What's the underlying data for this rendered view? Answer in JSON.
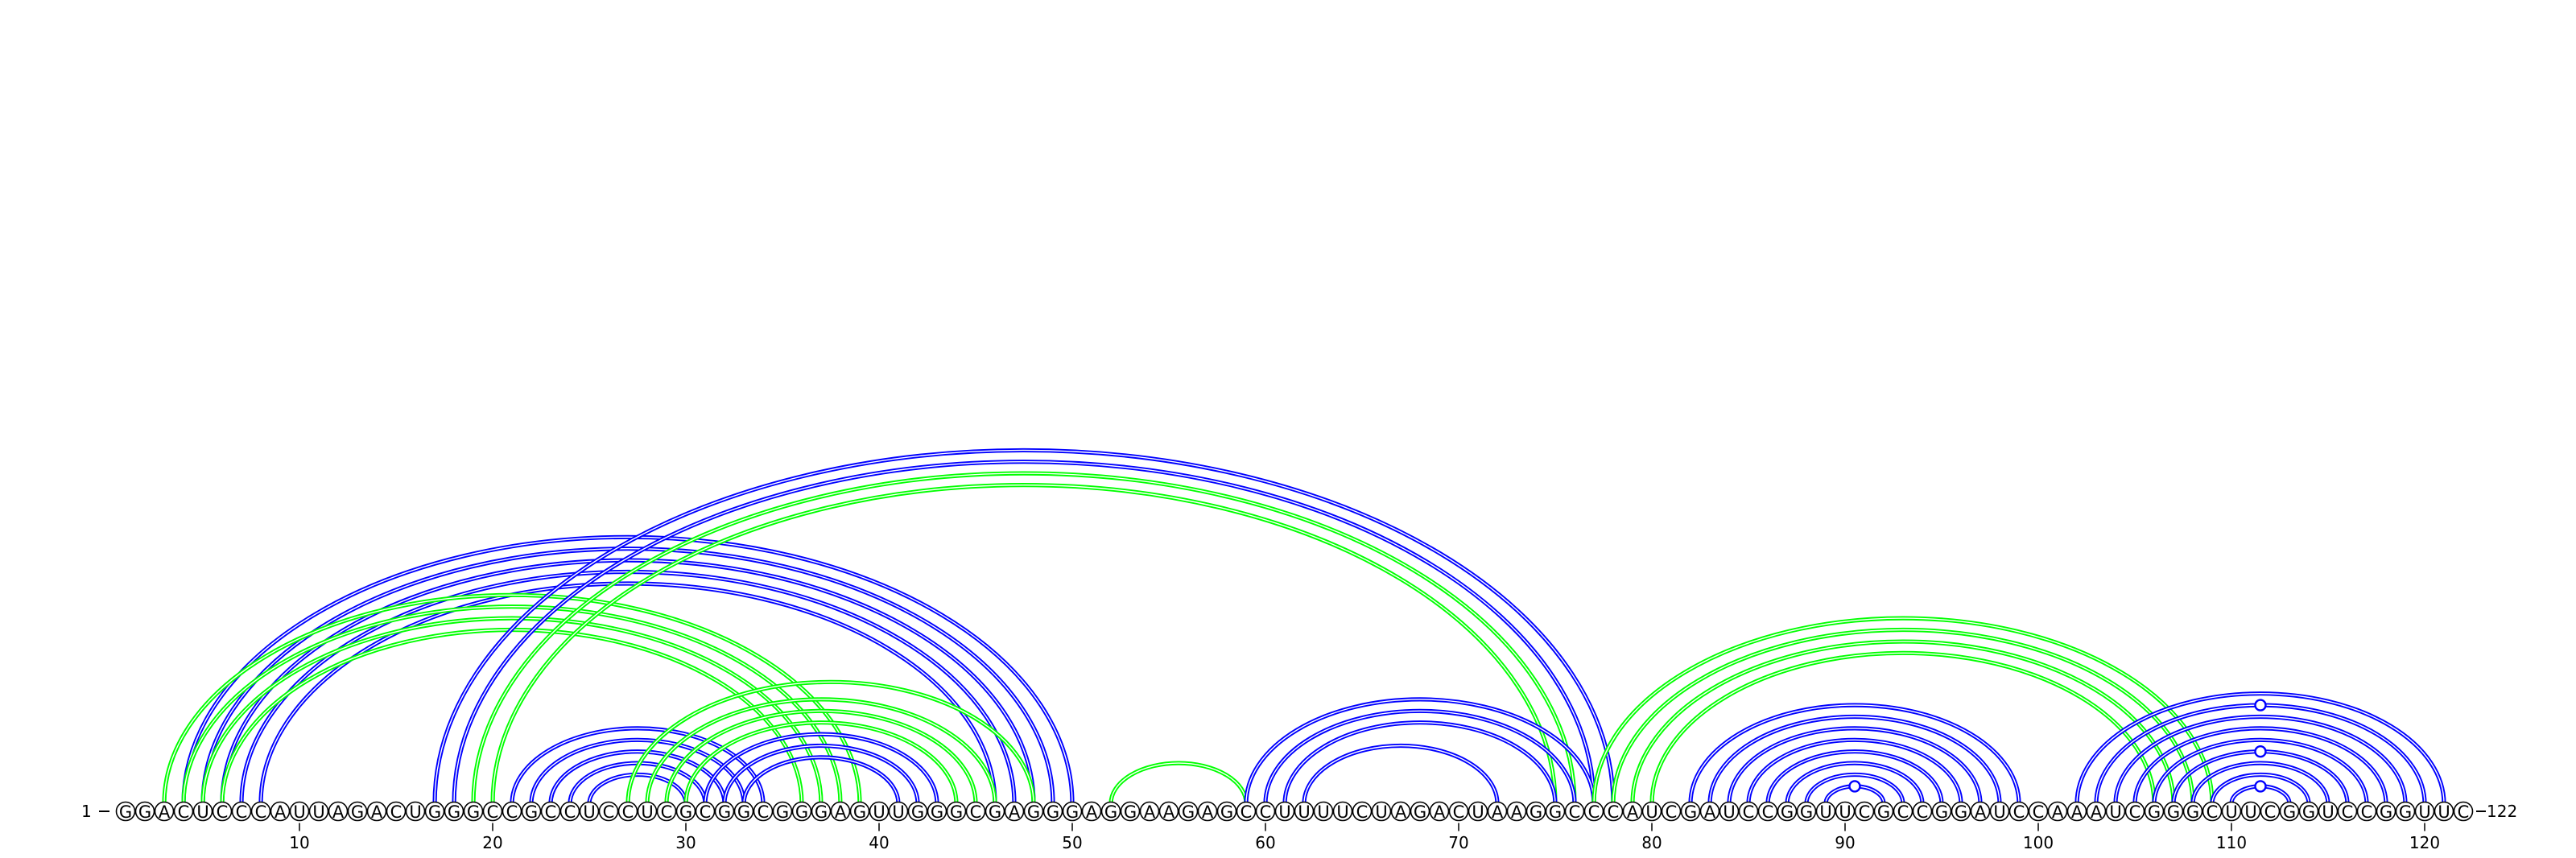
{
  "chart_data": {
    "type": "arc-diagram",
    "sequence": "GGACUCCCAUUAGACUGGGCCGCCUCCUCGCGGCGGGAGUUGGGCGAGGGAGGAAGAGCCUUUUCUAGACUAAGGCCCAUCGAUCCGGUUCGCCGGAUCCAAAUCGGGCUUCGGUCCGGUUC",
    "start_label": "1",
    "end_label": "122",
    "tick_labels": [
      "10",
      "20",
      "30",
      "40",
      "50",
      "60",
      "70",
      "80",
      "90",
      "100",
      "110",
      "120"
    ],
    "tick_positions": [
      10,
      20,
      30,
      40,
      50,
      60,
      70,
      80,
      90,
      100,
      110,
      120
    ],
    "colors": {
      "blue": "#0000ff",
      "green": "#00ff00"
    },
    "pairs": [
      {
        "i": 4,
        "j": 50,
        "color": "blue"
      },
      {
        "i": 5,
        "j": 49,
        "color": "blue"
      },
      {
        "i": 6,
        "j": 48,
        "color": "blue"
      },
      {
        "i": 7,
        "j": 47,
        "color": "blue"
      },
      {
        "i": 8,
        "j": 46,
        "color": "blue"
      },
      {
        "i": 3,
        "j": 39,
        "color": "green"
      },
      {
        "i": 4,
        "j": 38,
        "color": "green"
      },
      {
        "i": 5,
        "j": 37,
        "color": "green"
      },
      {
        "i": 6,
        "j": 36,
        "color": "green"
      },
      {
        "i": 17,
        "j": 78,
        "color": "blue"
      },
      {
        "i": 18,
        "j": 77,
        "color": "blue"
      },
      {
        "i": 19,
        "j": 76,
        "color": "green"
      },
      {
        "i": 20,
        "j": 75,
        "color": "green"
      },
      {
        "i": 21,
        "j": 34,
        "color": "blue"
      },
      {
        "i": 22,
        "j": 33,
        "color": "blue"
      },
      {
        "i": 23,
        "j": 32,
        "color": "blue"
      },
      {
        "i": 24,
        "j": 31,
        "color": "blue"
      },
      {
        "i": 25,
        "j": 30,
        "color": "blue"
      },
      {
        "i": 27,
        "j": 48,
        "color": "green"
      },
      {
        "i": 28,
        "j": 46,
        "color": "green"
      },
      {
        "i": 29,
        "j": 45,
        "color": "green"
      },
      {
        "i": 30,
        "j": 44,
        "color": "green"
      },
      {
        "i": 31,
        "j": 43,
        "color": "blue"
      },
      {
        "i": 32,
        "j": 42,
        "color": "blue"
      },
      {
        "i": 33,
        "j": 41,
        "color": "blue"
      },
      {
        "i": 52,
        "j": 59,
        "color": "green"
      },
      {
        "i": 59,
        "j": 77,
        "color": "blue"
      },
      {
        "i": 60,
        "j": 76,
        "color": "blue"
      },
      {
        "i": 61,
        "j": 75,
        "color": "blue"
      },
      {
        "i": 62,
        "j": 72,
        "color": "blue"
      },
      {
        "i": 77,
        "j": 109,
        "color": "green"
      },
      {
        "i": 78,
        "j": 108,
        "color": "green"
      },
      {
        "i": 79,
        "j": 107,
        "color": "green"
      },
      {
        "i": 80,
        "j": 106,
        "color": "green"
      },
      {
        "i": 82,
        "j": 99,
        "color": "blue"
      },
      {
        "i": 83,
        "j": 98,
        "color": "blue"
      },
      {
        "i": 84,
        "j": 97,
        "color": "blue"
      },
      {
        "i": 85,
        "j": 96,
        "color": "blue"
      },
      {
        "i": 86,
        "j": 95,
        "color": "blue"
      },
      {
        "i": 87,
        "j": 94,
        "color": "blue"
      },
      {
        "i": 88,
        "j": 93,
        "color": "blue"
      },
      {
        "i": 89,
        "j": 92,
        "color": "blue"
      },
      {
        "i": 102,
        "j": 121,
        "color": "blue"
      },
      {
        "i": 103,
        "j": 120,
        "color": "blue"
      },
      {
        "i": 104,
        "j": 119,
        "color": "blue"
      },
      {
        "i": 105,
        "j": 118,
        "color": "blue"
      },
      {
        "i": 106,
        "j": 117,
        "color": "blue"
      },
      {
        "i": 107,
        "j": 116,
        "color": "blue"
      },
      {
        "i": 108,
        "j": 115,
        "color": "blue"
      },
      {
        "i": 109,
        "j": 114,
        "color": "blue"
      },
      {
        "i": 110,
        "j": 113,
        "color": "blue"
      }
    ],
    "marked_arcs": [
      {
        "i": 89,
        "j": 92
      },
      {
        "i": 103,
        "j": 120
      },
      {
        "i": 107,
        "j": 116
      },
      {
        "i": 110,
        "j": 113
      }
    ]
  }
}
